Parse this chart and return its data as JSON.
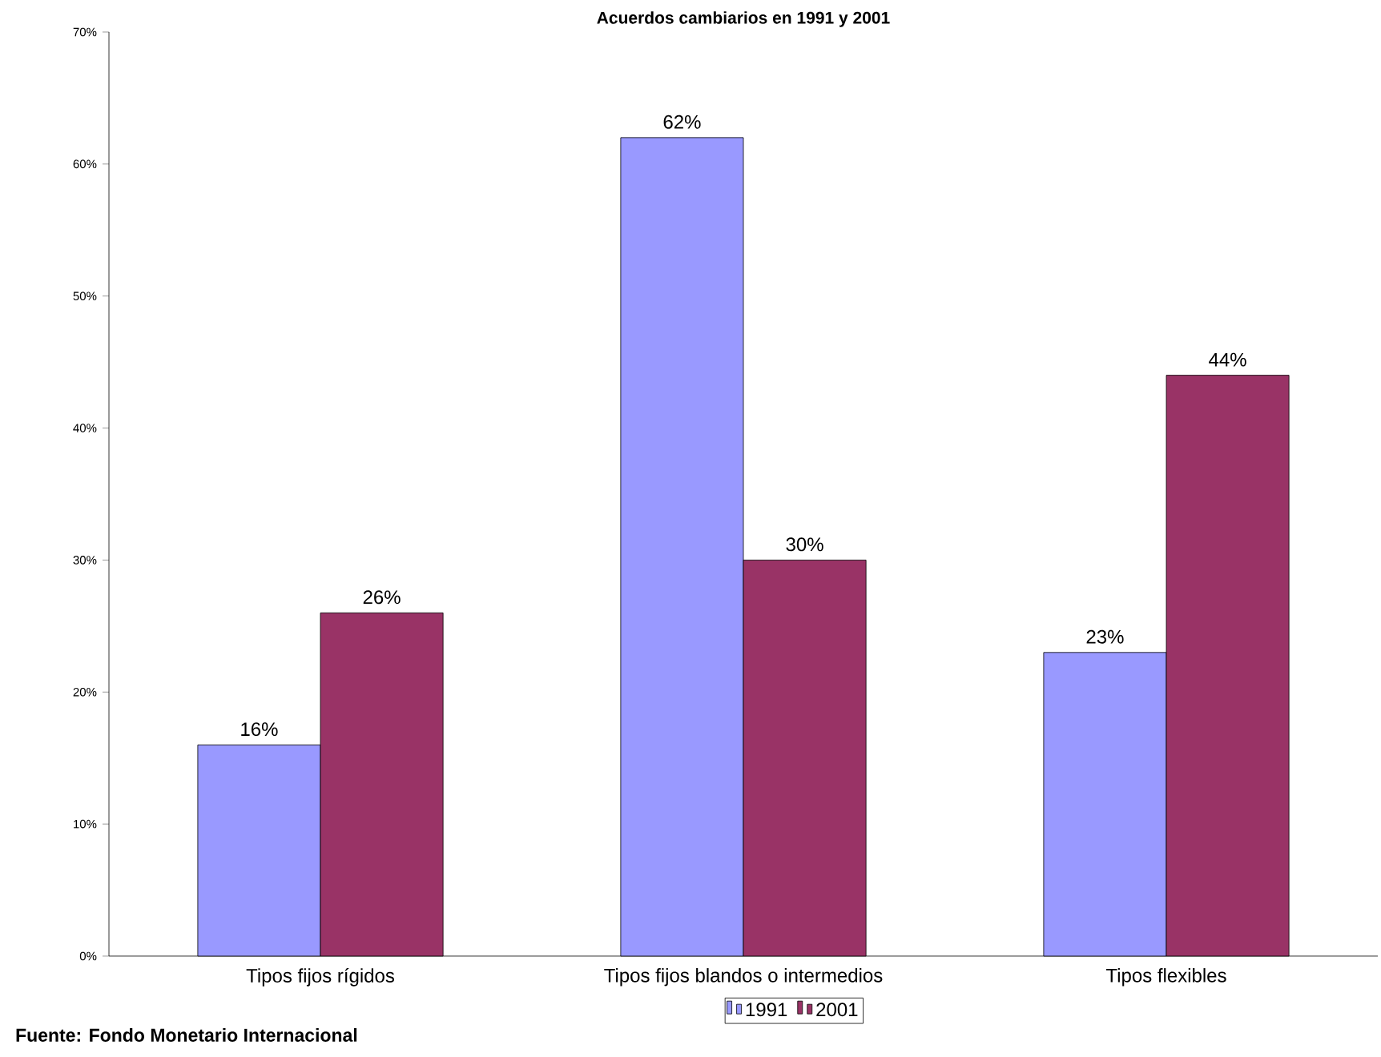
{
  "chart_data": {
    "type": "bar",
    "title": "Acuerdos cambiarios en 1991 y 2001",
    "categories": [
      "Tipos fijos rígidos",
      "Tipos fijos blandos o intermedios",
      "Tipos flexibles"
    ],
    "series": [
      {
        "name": "1991",
        "color": "#9999ff",
        "values": [
          16,
          62,
          23
        ],
        "value_labels": [
          "16%",
          "62%",
          "23%"
        ]
      },
      {
        "name": "2001",
        "color": "#993366",
        "values": [
          26,
          30,
          44
        ],
        "value_labels": [
          "26%",
          "30%",
          "44%"
        ]
      }
    ],
    "ylim": [
      0,
      70
    ],
    "yticks": [
      {
        "value": 0,
        "label": "0%"
      },
      {
        "value": 10,
        "label": "10%"
      },
      {
        "value": 20,
        "label": "20%"
      },
      {
        "value": 30,
        "label": "30%"
      },
      {
        "value": 40,
        "label": "40%"
      },
      {
        "value": 50,
        "label": "50%"
      },
      {
        "value": 60,
        "label": "60%"
      },
      {
        "value": 70,
        "label": "70%"
      }
    ],
    "legend": "bottom",
    "annotations": [
      "Fuente: Fondo Monetario Internacional"
    ]
  }
}
